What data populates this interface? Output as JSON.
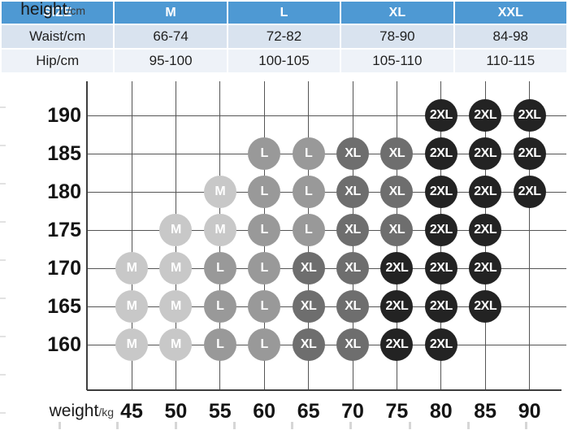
{
  "size_table": {
    "header": [
      "SIZE",
      "M",
      "L",
      "XL",
      "XXL"
    ],
    "rows": [
      {
        "label": "Waist/cm",
        "values": [
          "66-74",
          "72-82",
          "78-90",
          "84-98"
        ]
      },
      {
        "label": "Hip/cm",
        "values": [
          "95-100",
          "100-105",
          "105-110",
          "110-115"
        ]
      }
    ],
    "colors": {
      "header_bg": "#4e99d3",
      "header_text": "#ffffff",
      "row_waist_bg": "#d9e3ef",
      "row_hip_bg": "#eef2f8",
      "row_text": "#1f1f1f"
    }
  },
  "chart_data": {
    "type": "scatter",
    "title": "",
    "xlabel": "weight/kg",
    "ylabel": "height/cm",
    "x_ticks": [
      45,
      50,
      55,
      60,
      65,
      70,
      75,
      80,
      85,
      90
    ],
    "y_ticks": [
      190,
      185,
      180,
      175,
      170,
      165,
      160
    ],
    "x_range": [
      45,
      90
    ],
    "y_range": [
      160,
      190
    ],
    "grid": true,
    "grid_color": "#555555",
    "axis_color": "#3d3d3d",
    "tick_label_color": "#141414",
    "point_label_color": "#ffffff",
    "series": [
      {
        "name": "M",
        "color": "#c8c8c8",
        "points": [
          [
            45,
            160
          ],
          [
            50,
            160
          ],
          [
            45,
            165
          ],
          [
            50,
            165
          ],
          [
            45,
            170
          ],
          [
            50,
            170
          ],
          [
            50,
            175
          ],
          [
            55,
            175
          ],
          [
            55,
            180
          ]
        ]
      },
      {
        "name": "L",
        "color": "#999999",
        "points": [
          [
            55,
            160
          ],
          [
            60,
            160
          ],
          [
            55,
            165
          ],
          [
            60,
            165
          ],
          [
            55,
            170
          ],
          [
            60,
            170
          ],
          [
            60,
            175
          ],
          [
            65,
            175
          ],
          [
            60,
            180
          ],
          [
            65,
            180
          ],
          [
            60,
            185
          ],
          [
            65,
            185
          ]
        ]
      },
      {
        "name": "XL",
        "color": "#6e6e6e",
        "points": [
          [
            65,
            160
          ],
          [
            70,
            160
          ],
          [
            65,
            165
          ],
          [
            70,
            165
          ],
          [
            65,
            170
          ],
          [
            70,
            170
          ],
          [
            70,
            175
          ],
          [
            75,
            175
          ],
          [
            70,
            180
          ],
          [
            75,
            180
          ],
          [
            70,
            185
          ],
          [
            75,
            185
          ]
        ]
      },
      {
        "name": "2XL",
        "color": "#232323",
        "points": [
          [
            75,
            160
          ],
          [
            80,
            160
          ],
          [
            75,
            165
          ],
          [
            80,
            165
          ],
          [
            85,
            165
          ],
          [
            75,
            170
          ],
          [
            80,
            170
          ],
          [
            85,
            170
          ],
          [
            80,
            175
          ],
          [
            85,
            175
          ],
          [
            80,
            180
          ],
          [
            85,
            180
          ],
          [
            90,
            180
          ],
          [
            80,
            185
          ],
          [
            85,
            185
          ],
          [
            90,
            185
          ],
          [
            80,
            190
          ],
          [
            85,
            190
          ],
          [
            90,
            190
          ]
        ]
      }
    ],
    "axis_labels": {
      "y_word": "height",
      "y_unit": "/cm",
      "x_word": "weight",
      "x_unit": "/kg"
    }
  }
}
